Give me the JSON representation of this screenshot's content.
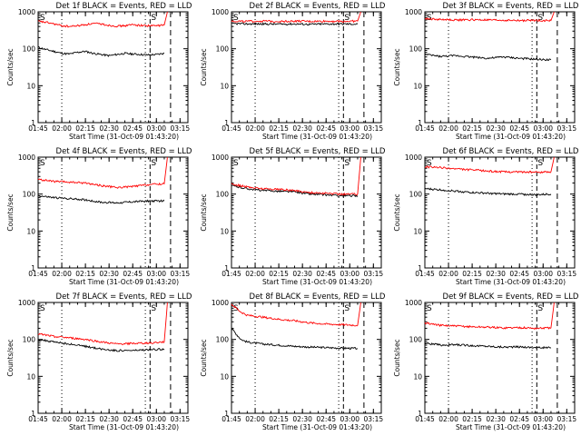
{
  "chart_data": [
    {
      "type": "line",
      "title": "Det 1f BLACK = Events, RED = LLD",
      "xlabel": "Start Time (31-Oct-09 01:43:20)",
      "ylabel": "Counts/sec",
      "x_ticks": [
        "01:45",
        "02:00",
        "02:15",
        "02:30",
        "02:45",
        "03:00",
        "03:15"
      ],
      "y_ticks": [
        "1",
        "10",
        "100",
        "1000"
      ],
      "markers": [
        "S",
        "S"
      ],
      "series": [
        {
          "name": "Events",
          "color": "#000000",
          "x": [
            0,
            5,
            10,
            15,
            20,
            25,
            30,
            35,
            40,
            45,
            50,
            55,
            60,
            65,
            70,
            75,
            80
          ],
          "values": [
            110,
            95,
            85,
            75,
            72,
            80,
            85,
            75,
            70,
            65,
            70,
            75,
            72,
            70,
            68,
            70,
            75
          ]
        },
        {
          "name": "LLD",
          "color": "#ff0000",
          "x": [
            0,
            5,
            10,
            15,
            20,
            25,
            30,
            35,
            40,
            45,
            50,
            55,
            60,
            65,
            70,
            75,
            80,
            82
          ],
          "values": [
            550,
            520,
            470,
            420,
            400,
            420,
            450,
            480,
            470,
            430,
            410,
            420,
            450,
            430,
            420,
            420,
            440,
            1000
          ]
        }
      ]
    },
    {
      "type": "line",
      "title": "Det 2f BLACK = Events, RED = LLD",
      "xlabel": "Start Time (31-Oct-09 01:43:20)",
      "ylabel": "Counts/sec",
      "x_ticks": [
        "01:45",
        "02:00",
        "02:15",
        "02:30",
        "02:45",
        "03:00",
        "03:15"
      ],
      "y_ticks": [
        "1",
        "10",
        "100",
        "1000"
      ],
      "markers": [
        "S",
        "S"
      ],
      "series": [
        {
          "name": "Events",
          "color": "#000000",
          "x": [
            0,
            10,
            20,
            30,
            40,
            50,
            60,
            70,
            80
          ],
          "values": [
            480,
            470,
            470,
            465,
            470,
            460,
            470,
            470,
            465
          ]
        },
        {
          "name": "LLD",
          "color": "#ff0000",
          "x": [
            0,
            10,
            20,
            30,
            40,
            50,
            60,
            70,
            80,
            82
          ],
          "values": [
            560,
            550,
            560,
            550,
            560,
            550,
            560,
            550,
            560,
            1000
          ]
        }
      ]
    },
    {
      "type": "line",
      "title": "Det 3f BLACK = Events, RED = LLD",
      "xlabel": "Start Time (31-Oct-09 01:43:20)",
      "ylabel": "Counts/sec",
      "x_ticks": [
        "01:45",
        "02:00",
        "02:15",
        "02:30",
        "02:45",
        "03:00",
        "03:15"
      ],
      "y_ticks": [
        "1",
        "10",
        "100",
        "1000"
      ],
      "markers": [
        "S",
        "S"
      ],
      "series": [
        {
          "name": "Events",
          "color": "#000000",
          "x": [
            0,
            10,
            20,
            30,
            40,
            50,
            60,
            70,
            80
          ],
          "values": [
            70,
            62,
            65,
            60,
            55,
            60,
            55,
            52,
            50
          ]
        },
        {
          "name": "LLD",
          "color": "#ff0000",
          "x": [
            0,
            10,
            20,
            30,
            40,
            50,
            60,
            70,
            80,
            82
          ],
          "values": [
            650,
            620,
            600,
            610,
            600,
            590,
            580,
            590,
            580,
            1000
          ]
        }
      ]
    },
    {
      "type": "line",
      "title": "Det 4f BLACK = Events, RED = LLD",
      "xlabel": "Start Time (31-Oct-09 01:43:20)",
      "ylabel": "Counts/sec",
      "x_ticks": [
        "01:45",
        "02:00",
        "02:15",
        "02:30",
        "02:45",
        "03:00",
        "03:15"
      ],
      "y_ticks": [
        "1",
        "10",
        "100",
        "1000"
      ],
      "markers": [
        "S",
        "S"
      ],
      "series": [
        {
          "name": "Events",
          "color": "#000000",
          "x": [
            0,
            10,
            20,
            30,
            40,
            50,
            60,
            70,
            80
          ],
          "values": [
            90,
            80,
            75,
            70,
            60,
            58,
            62,
            65,
            65
          ]
        },
        {
          "name": "LLD",
          "color": "#ff0000",
          "x": [
            0,
            10,
            20,
            30,
            40,
            50,
            60,
            70,
            80,
            82
          ],
          "values": [
            250,
            220,
            210,
            200,
            170,
            150,
            160,
            180,
            190,
            1000
          ]
        }
      ]
    },
    {
      "type": "line",
      "title": "Det 5f BLACK = Events, RED = LLD",
      "xlabel": "Start Time (31-Oct-09 01:43:20)",
      "ylabel": "Counts/sec",
      "x_ticks": [
        "01:45",
        "02:00",
        "02:15",
        "02:30",
        "02:45",
        "03:00",
        "03:15"
      ],
      "y_ticks": [
        "1",
        "10",
        "100",
        "1000"
      ],
      "markers": [
        "S",
        "S"
      ],
      "series": [
        {
          "name": "Events",
          "color": "#000000",
          "x": [
            0,
            10,
            20,
            30,
            40,
            50,
            60,
            70,
            80
          ],
          "values": [
            170,
            140,
            125,
            120,
            115,
            100,
            95,
            90,
            90
          ]
        },
        {
          "name": "LLD",
          "color": "#ff0000",
          "x": [
            0,
            10,
            20,
            30,
            40,
            50,
            60,
            70,
            80,
            82
          ],
          "values": [
            190,
            155,
            140,
            135,
            125,
            110,
            105,
            100,
            100,
            1000
          ]
        }
      ]
    },
    {
      "type": "line",
      "title": "Det 6f BLACK = Events, RED = LLD",
      "xlabel": "Start Time (31-Oct-09 01:43:20)",
      "ylabel": "Counts/sec",
      "x_ticks": [
        "01:45",
        "02:00",
        "02:15",
        "02:30",
        "02:45",
        "03:00",
        "03:15"
      ],
      "y_ticks": [
        "1",
        "10",
        "100",
        "1000"
      ],
      "markers": [
        "S",
        "S"
      ],
      "series": [
        {
          "name": "Events",
          "color": "#000000",
          "x": [
            0,
            10,
            20,
            30,
            40,
            50,
            60,
            70,
            80
          ],
          "values": [
            140,
            130,
            120,
            110,
            105,
            100,
            100,
            95,
            100
          ]
        },
        {
          "name": "LLD",
          "color": "#ff0000",
          "x": [
            0,
            10,
            20,
            30,
            40,
            50,
            60,
            70,
            80,
            82
          ],
          "values": [
            550,
            520,
            480,
            450,
            420,
            400,
            400,
            390,
            400,
            1000
          ]
        }
      ]
    },
    {
      "type": "line",
      "title": "Det 7f BLACK = Events, RED = LLD",
      "xlabel": "Start Time (31-Oct-09 01:43:20)",
      "ylabel": "Counts/sec",
      "x_ticks": [
        "01:45",
        "02:00",
        "02:15",
        "02:30",
        "02:45",
        "03:00",
        "03:15"
      ],
      "y_ticks": [
        "1",
        "10",
        "100",
        "1000"
      ],
      "markers": [
        "S",
        "S"
      ],
      "series": [
        {
          "name": "Events",
          "color": "#000000",
          "x": [
            0,
            10,
            20,
            30,
            40,
            50,
            60,
            70,
            80
          ],
          "values": [
            100,
            85,
            75,
            65,
            55,
            50,
            50,
            52,
            55
          ]
        },
        {
          "name": "LLD",
          "color": "#ff0000",
          "x": [
            0,
            10,
            20,
            30,
            40,
            50,
            60,
            70,
            80,
            82
          ],
          "values": [
            140,
            120,
            110,
            100,
            85,
            75,
            78,
            80,
            85,
            1000
          ]
        }
      ]
    },
    {
      "type": "line",
      "title": "Det 8f BLACK = Events, RED = LLD",
      "xlabel": "Start Time (31-Oct-09 01:43:20)",
      "ylabel": "Counts/sec",
      "x_ticks": [
        "01:45",
        "02:00",
        "02:15",
        "02:30",
        "02:45",
        "03:00",
        "03:15"
      ],
      "y_ticks": [
        "1",
        "10",
        "100",
        "1000"
      ],
      "markers": [
        "S",
        "S"
      ],
      "series": [
        {
          "name": "Events",
          "color": "#000000",
          "x": [
            0,
            3,
            6,
            10,
            20,
            30,
            40,
            50,
            60,
            70,
            80
          ],
          "values": [
            200,
            140,
            100,
            85,
            75,
            70,
            65,
            62,
            60,
            58,
            57
          ]
        },
        {
          "name": "LLD",
          "color": "#ff0000",
          "x": [
            0,
            3,
            6,
            10,
            20,
            30,
            40,
            50,
            60,
            70,
            80,
            82
          ],
          "values": [
            900,
            700,
            550,
            450,
            400,
            350,
            320,
            280,
            260,
            250,
            240,
            1000
          ]
        }
      ]
    },
    {
      "type": "line",
      "title": "Det 9f BLACK = Events, RED = LLD",
      "xlabel": "Start Time (31-Oct-09 01:43:20)",
      "ylabel": "Counts/sec",
      "x_ticks": [
        "01:45",
        "02:00",
        "02:15",
        "02:30",
        "02:45",
        "03:00",
        "03:15"
      ],
      "y_ticks": [
        "1",
        "10",
        "100",
        "1000"
      ],
      "markers": [
        "S",
        "S"
      ],
      "series": [
        {
          "name": "Events",
          "color": "#000000",
          "x": [
            0,
            10,
            20,
            30,
            40,
            50,
            60,
            70,
            80
          ],
          "values": [
            80,
            70,
            72,
            68,
            65,
            62,
            63,
            60,
            60
          ]
        },
        {
          "name": "LLD",
          "color": "#ff0000",
          "x": [
            0,
            10,
            20,
            30,
            40,
            50,
            60,
            70,
            80,
            82
          ],
          "values": [
            280,
            240,
            230,
            220,
            215,
            205,
            210,
            200,
            205,
            1000
          ]
        }
      ]
    }
  ]
}
